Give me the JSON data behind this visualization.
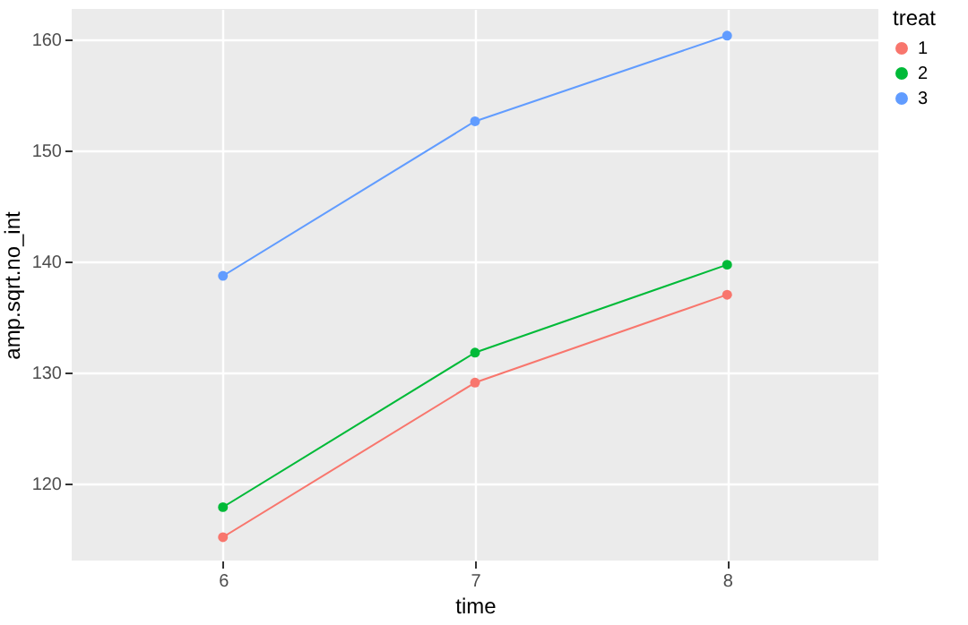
{
  "chart_data": {
    "type": "line",
    "xlabel": "time",
    "ylabel": "amp.sqrt.no_int",
    "legend_title": "treat",
    "x": [
      6,
      7,
      8
    ],
    "series": [
      {
        "name": "1",
        "color": "#f8766d",
        "values": [
          115.2,
          129.1,
          137.0
        ]
      },
      {
        "name": "2",
        "color": "#00ba38",
        "values": [
          117.9,
          131.8,
          139.7
        ]
      },
      {
        "name": "3",
        "color": "#619cff",
        "values": [
          138.7,
          152.6,
          160.3
        ]
      }
    ],
    "xlim": [
      5.4,
      8.6
    ],
    "xticks": [
      6,
      7,
      8
    ],
    "ylim": [
      113.1,
      162.7
    ],
    "yticks": [
      120,
      130,
      140,
      150,
      160
    ],
    "grid": true,
    "legend": "right",
    "marker": "circle",
    "line_style": "solid"
  }
}
